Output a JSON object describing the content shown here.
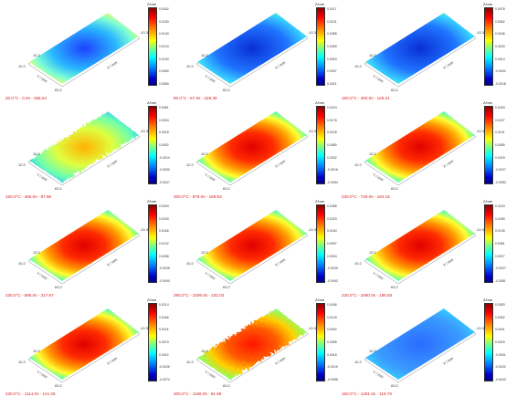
{
  "colors": {
    "caption": "#d62020",
    "hot": "#ff0000",
    "cold": "#0000cd"
  },
  "colorbar_title": "Z/mm",
  "axis_labels": {
    "x": "X / mm",
    "y": "Y / mm"
  },
  "panels": [
    {
      "caption": "20.0°C - 0.0s - 255.64",
      "pattern": "cold-edges",
      "ticks": [
        "0.0162",
        "0.0150",
        "0.0140",
        "0.0120",
        "0.0100",
        "0.0080",
        "0.0060"
      ],
      "corners": [
        "10.2",
        "63.2",
        "-10.3"
      ]
    },
    {
      "caption": "90.0°C - 67.0s - 228.39",
      "pattern": "cold-center",
      "ticks": [
        "0.0117",
        "0.0101",
        "0.0085",
        "0.0069",
        "0.0053",
        "0.0037",
        "0.0021"
      ],
      "corners": [
        "10.2",
        "63.2",
        "-10.3"
      ]
    },
    {
      "caption": "150.0°C - 260.0s - 129.21",
      "pattern": "cold-center",
      "ticks": [
        "0.0078",
        "0.0062",
        "0.0046",
        "0.0030",
        "0.0014",
        "-0.0002",
        "-0.0018"
      ],
      "corners": [
        "10.2",
        "63.2",
        "-10.3"
      ]
    },
    {
      "caption": "150.0°C - 465.0s - 87.96",
      "pattern": "noisy-warm",
      "ticks": [
        "0.0051",
        "0.0034",
        "0.0018",
        "0.0002",
        "-0.0014",
        "-0.0030",
        "-0.0047"
      ],
      "corners": [
        "10.2",
        "63.2",
        "-10.3"
      ]
    },
    {
      "caption": "200.0°C - 676.0s - 158.93",
      "pattern": "hot-center",
      "ticks": [
        "0.0224",
        "0.0176",
        "0.0128",
        "0.0080",
        "0.0032",
        "-0.0016",
        "-0.0064"
      ],
      "corners": [
        "10.2",
        "63.2",
        "-10.3"
      ]
    },
    {
      "caption": "230.0°C - 746.0s - 194.15",
      "pattern": "hot-center",
      "ticks": [
        "0.0253",
        "0.0197",
        "0.0141",
        "0.0085",
        "0.0029",
        "-0.0027",
        "-0.0083"
      ],
      "corners": [
        "10.2",
        "63.2",
        "-10.3"
      ]
    },
    {
      "caption": "230.0°C - 896.0s - 217.67",
      "pattern": "hot-center",
      "ticks": [
        "0.0294",
        "0.0230",
        "0.0166",
        "0.0102",
        "0.0038",
        "-0.0026",
        "-0.0090"
      ],
      "corners": [
        "10.2",
        "63.2",
        "-10.3"
      ]
    },
    {
      "caption": "290.0°C - 1006.0s - 232.03",
      "pattern": "hot-center",
      "ticks": [
        "0.0286",
        "0.0223",
        "0.0160",
        "0.0097",
        "0.0034",
        "-0.0029",
        "-0.0092"
      ],
      "corners": [
        "10.2",
        "63.2",
        "-10.3"
      ]
    },
    {
      "caption": "230.0°C - 1060.0s - 186.93",
      "pattern": "hot-center",
      "ticks": [
        "0.0243",
        "0.0189",
        "0.0135",
        "0.0081",
        "0.0027",
        "-0.0027",
        "-0.0081"
      ],
      "corners": [
        "10.2",
        "63.2",
        "-10.3"
      ]
    },
    {
      "caption": "230.0°C - 1114.0s - 141.28",
      "pattern": "hot-center",
      "ticks": [
        "0.0214",
        "0.0166",
        "0.0118",
        "0.0070",
        "0.0022",
        "-0.0026",
        "-0.0074"
      ],
      "corners": [
        "10.2",
        "63.2",
        "-10.3"
      ]
    },
    {
      "caption": "200.0°C - 1168.0s - 81.69",
      "pattern": "noisy-hot",
      "ticks": [
        "0.0166",
        "0.0129",
        "0.0092",
        "0.0055",
        "0.0018",
        "-0.0019",
        "-0.0056"
      ],
      "corners": [
        "10.2",
        "63.2",
        "-10.3"
      ]
    },
    {
      "caption": "150.0°C - 1261.0s - 119.79",
      "pattern": "cold-flat",
      "ticks": [
        "0.0083",
        "0.0062",
        "0.0041",
        "0.0020",
        "-0.0001",
        "-0.0022",
        "-0.0043"
      ],
      "corners": [
        "10.2",
        "63.2",
        "-10.3"
      ]
    }
  ]
}
